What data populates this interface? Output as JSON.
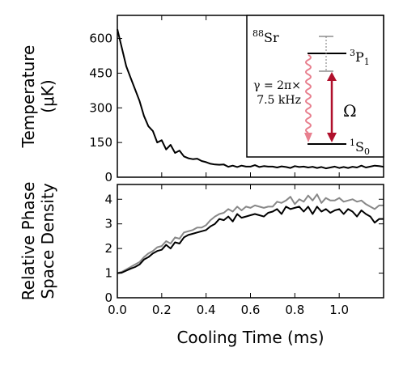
{
  "chart_data": [
    {
      "type": "line",
      "xlabel": "",
      "ylabel_lines": [
        "Temperature",
        "(μK)"
      ],
      "xlim": [
        0,
        1.2
      ],
      "ylim": [
        0,
        700
      ],
      "yticks": [
        "0",
        "150",
        "300",
        "450",
        "600"
      ],
      "ytick_values": [
        0,
        150,
        300,
        450,
        600
      ],
      "grid": false,
      "series": [
        {
          "color": "#000000",
          "x": [
            0.0,
            0.02,
            0.04,
            0.06,
            0.08,
            0.1,
            0.12,
            0.14,
            0.16,
            0.18,
            0.2,
            0.22,
            0.24,
            0.26,
            0.28,
            0.3,
            0.32,
            0.34,
            0.36,
            0.38,
            0.4,
            0.42,
            0.44,
            0.46,
            0.48,
            0.5,
            0.52,
            0.54,
            0.56,
            0.58,
            0.6,
            0.62,
            0.64,
            0.66,
            0.68,
            0.7,
            0.72,
            0.74,
            0.76,
            0.78,
            0.8,
            0.82,
            0.84,
            0.86,
            0.88,
            0.9,
            0.92,
            0.94,
            0.96,
            0.98,
            1.0,
            1.02,
            1.04,
            1.06,
            1.08,
            1.1,
            1.12,
            1.14,
            1.16,
            1.18,
            1.2
          ],
          "y": [
            640,
            560,
            480,
            430,
            380,
            330,
            265,
            220,
            200,
            150,
            160,
            120,
            140,
            105,
            115,
            90,
            82,
            78,
            80,
            70,
            65,
            58,
            55,
            54,
            55,
            45,
            50,
            44,
            50,
            46,
            46,
            52,
            44,
            48,
            46,
            46,
            42,
            47,
            44,
            40,
            48,
            44,
            46,
            42,
            45,
            40,
            44,
            38,
            42,
            46,
            40,
            44,
            40,
            45,
            42,
            50,
            42,
            46,
            50,
            48,
            45
          ]
        }
      ],
      "inset": {
        "isotope_mass": "88",
        "isotope_symbol": "Sr",
        "upper_level_sup": "3",
        "upper_level_main": "P",
        "upper_level_sub": "1",
        "lower_level_sup": "1",
        "lower_level_main": "S",
        "lower_level_sub": "0",
        "decay_rate_line1": "γ = 2π×",
        "decay_rate_line2": "7.5 kHz",
        "rabi_symbol": "Ω",
        "decay_color": "#e8808f",
        "drive_color": "#b0102c"
      }
    },
    {
      "type": "line",
      "xlabel": "Cooling Time (ms)",
      "ylabel_lines": [
        "Relative Phase",
        "Space Density"
      ],
      "xlim": [
        0,
        1.2
      ],
      "ylim": [
        0,
        4.6
      ],
      "xticks": [
        "0.0",
        "0.2",
        "0.4",
        "0.6",
        "0.8",
        "1.0"
      ],
      "xtick_values": [
        0.0,
        0.2,
        0.4,
        0.6,
        0.8,
        1.0
      ],
      "yticks": [
        "0",
        "1",
        "2",
        "3",
        "4"
      ],
      "ytick_values": [
        0,
        1,
        2,
        3,
        4
      ],
      "grid": false,
      "series": [
        {
          "color": "#888888",
          "x": [
            0.0,
            0.02,
            0.04,
            0.06,
            0.08,
            0.1,
            0.12,
            0.14,
            0.16,
            0.18,
            0.2,
            0.22,
            0.24,
            0.26,
            0.28,
            0.3,
            0.32,
            0.34,
            0.36,
            0.38,
            0.4,
            0.42,
            0.44,
            0.46,
            0.48,
            0.5,
            0.52,
            0.54,
            0.56,
            0.58,
            0.6,
            0.62,
            0.64,
            0.66,
            0.68,
            0.7,
            0.72,
            0.74,
            0.76,
            0.78,
            0.8,
            0.82,
            0.84,
            0.86,
            0.88,
            0.9,
            0.92,
            0.94,
            0.96,
            0.98,
            1.0,
            1.02,
            1.04,
            1.06,
            1.08,
            1.1,
            1.12,
            1.14,
            1.16,
            1.18,
            1.2
          ],
          "y": [
            1.0,
            1.05,
            1.15,
            1.25,
            1.35,
            1.45,
            1.65,
            1.8,
            1.9,
            2.05,
            2.1,
            2.3,
            2.2,
            2.45,
            2.4,
            2.65,
            2.7,
            2.75,
            2.85,
            2.85,
            2.95,
            3.15,
            3.3,
            3.4,
            3.45,
            3.6,
            3.5,
            3.7,
            3.55,
            3.7,
            3.65,
            3.75,
            3.7,
            3.65,
            3.7,
            3.7,
            3.9,
            3.85,
            3.95,
            4.1,
            3.8,
            4.0,
            3.9,
            4.15,
            3.95,
            4.2,
            3.85,
            4.05,
            3.95,
            3.95,
            4.05,
            3.9,
            3.95,
            4.0,
            3.9,
            3.95,
            3.8,
            3.7,
            3.6,
            3.75,
            3.75
          ]
        },
        {
          "color": "#000000",
          "x": [
            0.0,
            0.02,
            0.04,
            0.06,
            0.08,
            0.1,
            0.12,
            0.14,
            0.16,
            0.18,
            0.2,
            0.22,
            0.24,
            0.26,
            0.28,
            0.3,
            0.32,
            0.34,
            0.36,
            0.38,
            0.4,
            0.42,
            0.44,
            0.46,
            0.48,
            0.5,
            0.52,
            0.54,
            0.56,
            0.58,
            0.6,
            0.62,
            0.64,
            0.66,
            0.68,
            0.7,
            0.72,
            0.74,
            0.76,
            0.78,
            0.8,
            0.82,
            0.84,
            0.86,
            0.88,
            0.9,
            0.92,
            0.94,
            0.96,
            0.98,
            1.0,
            1.02,
            1.04,
            1.06,
            1.08,
            1.1,
            1.12,
            1.14,
            1.16,
            1.18,
            1.2
          ],
          "y": [
            1.0,
            1.02,
            1.1,
            1.18,
            1.25,
            1.35,
            1.55,
            1.65,
            1.8,
            1.9,
            1.95,
            2.15,
            2.0,
            2.25,
            2.2,
            2.45,
            2.55,
            2.6,
            2.65,
            2.7,
            2.75,
            2.9,
            3.0,
            3.2,
            3.15,
            3.3,
            3.1,
            3.4,
            3.25,
            3.3,
            3.35,
            3.4,
            3.35,
            3.3,
            3.45,
            3.5,
            3.6,
            3.4,
            3.7,
            3.6,
            3.65,
            3.7,
            3.5,
            3.7,
            3.4,
            3.7,
            3.5,
            3.6,
            3.45,
            3.55,
            3.6,
            3.4,
            3.6,
            3.5,
            3.3,
            3.55,
            3.4,
            3.3,
            3.05,
            3.2,
            3.2
          ]
        }
      ]
    }
  ]
}
